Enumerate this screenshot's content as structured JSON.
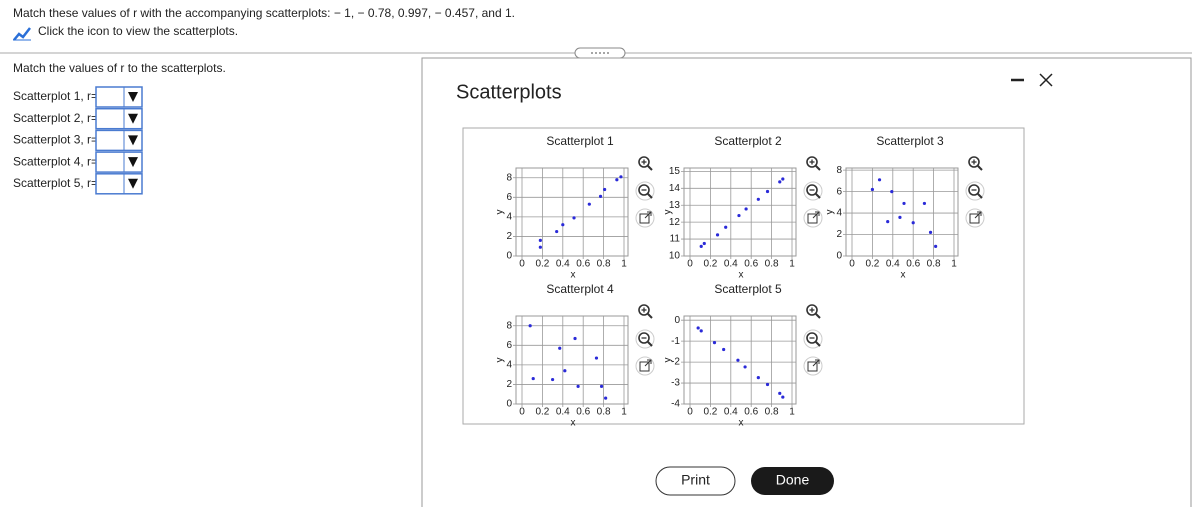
{
  "question": {
    "text": "Match these values of r with the accompanying scatterplots: − 1, − 0.78, 0.997, − 0.457, and 1.",
    "link": "Click the icon to view the scatterplots."
  },
  "matching": {
    "instruction": "Match the values of r to the scatterplots.",
    "rows": [
      "Scatterplot 1, r=",
      "Scatterplot 2, r=",
      "Scatterplot 3, r=",
      "Scatterplot 4, r=",
      "Scatterplot 5, r="
    ]
  },
  "dialog": {
    "title": "Scatterplots",
    "buttons": [
      "Print",
      "Done"
    ]
  },
  "scatterplots": [
    {
      "type": "scatter",
      "title": "Scatterplot 1",
      "xlabel": "x",
      "ylabel": "y",
      "color": "#2a2ad8",
      "x": [
        0.18,
        0.18,
        0.34,
        0.4,
        0.51,
        0.66,
        0.77,
        0.81,
        0.93,
        0.97
      ],
      "y": [
        1.6,
        0.9,
        2.5,
        3.2,
        3.9,
        5.3,
        6.1,
        6.8,
        7.8,
        8.1
      ],
      "xlim": [
        0,
        1
      ],
      "ylim": [
        0,
        9
      ],
      "xticks": [
        0,
        0.2,
        0.4,
        0.6,
        0.8,
        1
      ],
      "yticks": [
        0,
        2,
        4,
        6,
        8
      ]
    },
    {
      "type": "scatter",
      "title": "Scatterplot 2",
      "xlabel": "x",
      "ylabel": "y",
      "color": "#2a2ad8",
      "x": [
        0.11,
        0.14,
        0.27,
        0.35,
        0.48,
        0.55,
        0.67,
        0.76,
        0.88,
        0.91
      ],
      "y": [
        10.57,
        10.74,
        11.25,
        11.7,
        12.39,
        12.78,
        13.35,
        13.81,
        14.38,
        14.55
      ],
      "xlim": [
        0,
        1
      ],
      "ylim": [
        10,
        15.2
      ],
      "xticks": [
        0,
        0.2,
        0.4,
        0.6,
        0.8,
        1
      ],
      "yticks": [
        10,
        11,
        12,
        13,
        14,
        15
      ]
    },
    {
      "type": "scatter",
      "title": "Scatterplot 3",
      "xlabel": "x",
      "ylabel": "y",
      "color": "#2a2ad8",
      "x": [
        0.2,
        0.27,
        0.39,
        0.51,
        0.71,
        0.35,
        0.47,
        0.6,
        0.77,
        0.82
      ],
      "y": [
        6.2,
        7.1,
        6.0,
        4.9,
        4.9,
        3.2,
        3.6,
        3.1,
        2.2,
        0.9
      ],
      "xlim": [
        0,
        1
      ],
      "ylim": [
        0,
        8.2
      ],
      "xticks": [
        0,
        0.2,
        0.4,
        0.6,
        0.8,
        1
      ],
      "yticks": [
        0,
        2,
        4,
        6,
        8
      ]
    },
    {
      "type": "scatter",
      "title": "Scatterplot 4",
      "xlabel": "x",
      "ylabel": "y",
      "color": "#2a2ad8",
      "x": [
        0.08,
        0.11,
        0.3,
        0.37,
        0.42,
        0.52,
        0.55,
        0.73,
        0.78,
        0.82
      ],
      "y": [
        8.0,
        2.6,
        2.5,
        5.7,
        3.4,
        6.7,
        1.8,
        4.7,
        1.8,
        0.6
      ],
      "xlim": [
        0,
        1
      ],
      "ylim": [
        0,
        9
      ],
      "xticks": [
        0,
        0.2,
        0.4,
        0.6,
        0.8,
        1
      ],
      "yticks": [
        0,
        2,
        4,
        6,
        8
      ]
    },
    {
      "type": "scatter",
      "title": "Scatterplot 5",
      "xlabel": "x",
      "ylabel": "y",
      "color": "#2a2ad8",
      "x": [
        0.08,
        0.11,
        0.24,
        0.33,
        0.47,
        0.54,
        0.67,
        0.76,
        0.88,
        0.91
      ],
      "y": [
        -0.37,
        -0.51,
        -1.07,
        -1.4,
        -1.91,
        -2.23,
        -2.74,
        -3.07,
        -3.49,
        -3.67
      ],
      "xlim": [
        0,
        1
      ],
      "ylim": [
        -4,
        0.2
      ],
      "xticks": [
        0,
        0.2,
        0.4,
        0.6,
        0.8,
        1
      ],
      "yticks": [
        -4,
        -3,
        -2,
        -1,
        0
      ]
    }
  ]
}
